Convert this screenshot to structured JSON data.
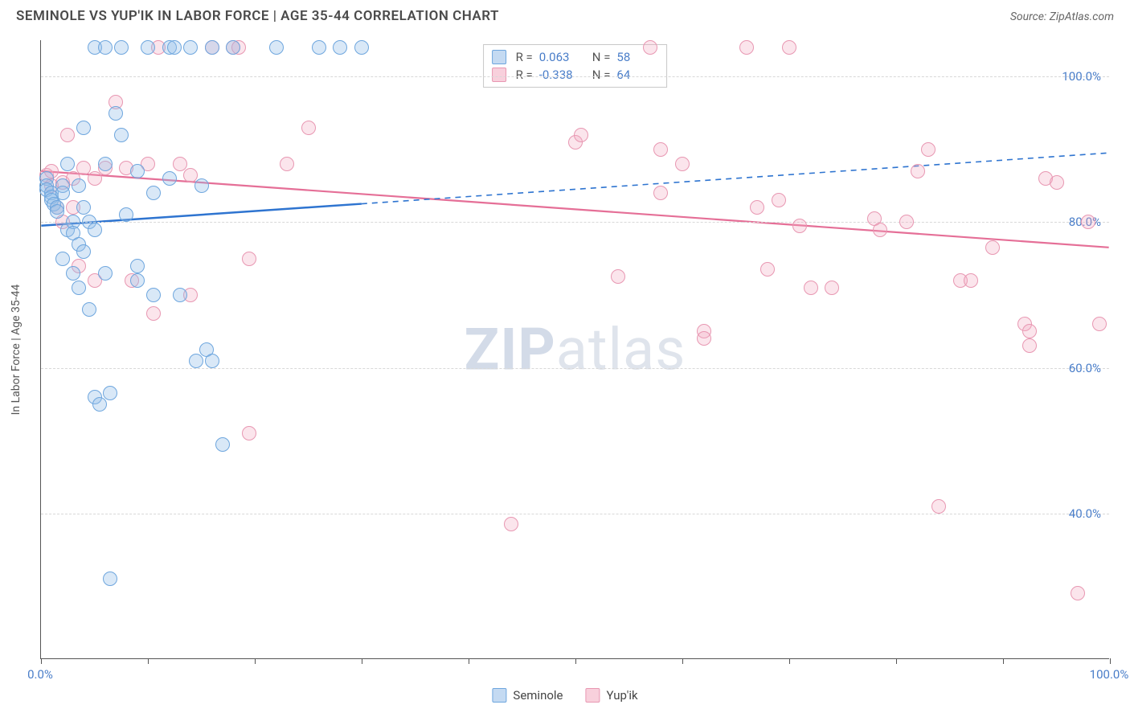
{
  "title": "SEMINOLE VS YUP'IK IN LABOR FORCE | AGE 35-44 CORRELATION CHART",
  "source": "Source: ZipAtlas.com",
  "watermark_bold": "ZIP",
  "watermark_light": "atlas",
  "y_axis_title": "In Labor Force | Age 35-44",
  "chart": {
    "type": "scatter",
    "background_color": "#ffffff",
    "grid_color": "#d8d8d8",
    "axis_color": "#555555",
    "xlim": [
      0,
      100
    ],
    "ylim": [
      20,
      105
    ],
    "yticks": [
      40,
      60,
      80,
      100
    ],
    "ytick_labels": [
      "40.0%",
      "60.0%",
      "80.0%",
      "100.0%"
    ],
    "xtick_positions": [
      0,
      10,
      20,
      30,
      40,
      50,
      60,
      70,
      80,
      90,
      100
    ],
    "x_label_min": "0.0%",
    "x_label_max": "100.0%",
    "series": {
      "seminole": {
        "label": "Seminole",
        "fill_color": "rgba(147,188,232,0.35)",
        "stroke_color": "#6ea6de",
        "marker_radius": 9,
        "R": "0.063",
        "N": "58",
        "trend": {
          "y_at_x0": 79.5,
          "y_at_x100": 89.5,
          "solid_until_x": 30,
          "color": "#2e74d0",
          "width_solid": 2.5,
          "width_dash": 1.6
        },
        "points": [
          [
            0.5,
            86
          ],
          [
            0.5,
            85
          ],
          [
            0.5,
            84.5
          ],
          [
            1,
            84
          ],
          [
            1,
            83.5
          ],
          [
            1,
            83
          ],
          [
            1.2,
            82.5
          ],
          [
            1.5,
            82
          ],
          [
            1.5,
            81.5
          ],
          [
            2,
            85
          ],
          [
            2,
            84
          ],
          [
            2,
            75
          ],
          [
            2.5,
            88
          ],
          [
            2.5,
            79
          ],
          [
            3,
            80
          ],
          [
            3,
            78.5
          ],
          [
            3,
            73
          ],
          [
            3.5,
            85
          ],
          [
            3.5,
            77
          ],
          [
            3.5,
            71
          ],
          [
            4,
            93
          ],
          [
            4,
            82
          ],
          [
            4,
            76
          ],
          [
            4.5,
            80
          ],
          [
            4.5,
            68
          ],
          [
            5,
            104
          ],
          [
            5,
            79
          ],
          [
            5,
            56
          ],
          [
            5.5,
            55
          ],
          [
            6,
            104
          ],
          [
            6,
            88
          ],
          [
            6,
            73
          ],
          [
            6.5,
            56.5
          ],
          [
            6.5,
            31
          ],
          [
            7,
            95
          ],
          [
            7.5,
            104
          ],
          [
            7.5,
            92
          ],
          [
            8,
            81
          ],
          [
            9,
            87
          ],
          [
            9,
            74
          ],
          [
            9,
            72
          ],
          [
            10,
            104
          ],
          [
            10.5,
            84
          ],
          [
            10.5,
            70
          ],
          [
            12,
            104
          ],
          [
            12,
            86
          ],
          [
            12.5,
            104
          ],
          [
            13,
            70
          ],
          [
            14,
            104
          ],
          [
            14.5,
            61
          ],
          [
            15,
            85
          ],
          [
            15.5,
            62.5
          ],
          [
            16,
            104
          ],
          [
            16,
            61
          ],
          [
            17,
            49.5
          ],
          [
            18,
            104
          ],
          [
            22,
            104
          ],
          [
            26,
            104
          ],
          [
            28,
            104
          ],
          [
            30,
            104
          ]
        ]
      },
      "yupik": {
        "label": "Yup'ik",
        "fill_color": "rgba(242,170,192,0.30)",
        "stroke_color": "#e897b2",
        "marker_radius": 9,
        "R": "-0.338",
        "N": "64",
        "trend": {
          "y_at_x0": 87.0,
          "y_at_x100": 76.5,
          "solid_until_x": 100,
          "color": "#e56f97",
          "width_solid": 2.2
        },
        "points": [
          [
            0.5,
            86.5
          ],
          [
            1,
            87
          ],
          [
            1,
            85
          ],
          [
            1.5,
            82
          ],
          [
            2,
            85.5
          ],
          [
            2,
            80
          ],
          [
            2.5,
            92
          ],
          [
            3,
            86
          ],
          [
            3,
            82
          ],
          [
            3.5,
            74
          ],
          [
            4,
            87.5
          ],
          [
            5,
            86
          ],
          [
            5,
            72
          ],
          [
            6,
            87.5
          ],
          [
            7,
            96.5
          ],
          [
            8,
            87.5
          ],
          [
            8.5,
            72
          ],
          [
            10,
            88
          ],
          [
            10.5,
            67.5
          ],
          [
            11,
            104
          ],
          [
            13,
            88
          ],
          [
            14,
            86.5
          ],
          [
            14,
            70
          ],
          [
            16,
            104
          ],
          [
            18,
            104
          ],
          [
            18.5,
            104
          ],
          [
            19.5,
            75
          ],
          [
            19.5,
            51
          ],
          [
            23,
            88
          ],
          [
            25,
            93
          ],
          [
            44,
            38.5
          ],
          [
            50,
            91
          ],
          [
            50.5,
            92
          ],
          [
            54,
            72.5
          ],
          [
            57,
            104
          ],
          [
            58,
            84
          ],
          [
            58,
            90
          ],
          [
            60,
            88
          ],
          [
            62,
            65
          ],
          [
            62,
            64
          ],
          [
            66,
            104
          ],
          [
            67,
            82
          ],
          [
            68,
            73.5
          ],
          [
            69,
            83
          ],
          [
            70,
            104
          ],
          [
            71,
            79.5
          ],
          [
            72,
            71
          ],
          [
            74,
            71
          ],
          [
            78,
            80.5
          ],
          [
            78.5,
            79
          ],
          [
            81,
            80
          ],
          [
            82,
            87
          ],
          [
            83,
            90
          ],
          [
            84,
            41
          ],
          [
            86,
            72
          ],
          [
            87,
            72
          ],
          [
            89,
            76.5
          ],
          [
            92,
            66
          ],
          [
            92.5,
            63
          ],
          [
            92.5,
            65
          ],
          [
            94,
            86
          ],
          [
            95,
            85.5
          ],
          [
            97,
            29
          ],
          [
            98,
            80
          ],
          [
            99,
            66
          ]
        ]
      }
    },
    "legend_stats": {
      "r_prefix": "R =",
      "n_prefix": "N ="
    },
    "bottom_legend": [
      "Seminole",
      "Yup'ik"
    ]
  }
}
